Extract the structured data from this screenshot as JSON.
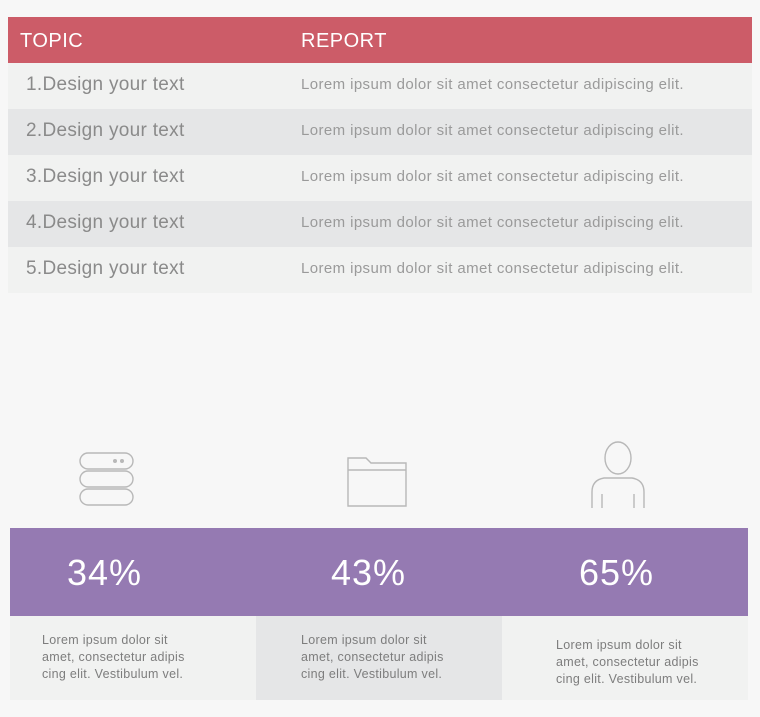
{
  "table": {
    "header": {
      "topic": "TOPIC",
      "report": "REPORT"
    },
    "rows": [
      {
        "topic": "1.Design your text",
        "report": "Lorem ipsum dolor sit amet consectetur adipiscing elit."
      },
      {
        "topic": "2.Design your text",
        "report": "Lorem ipsum dolor sit amet consectetur adipiscing elit."
      },
      {
        "topic": "3.Design your text",
        "report": "Lorem ipsum dolor sit amet consectetur adipiscing elit."
      },
      {
        "topic": "4.Design your text",
        "report": "Lorem ipsum dolor sit amet consectetur adipiscing elit."
      },
      {
        "topic": "5.Design your text",
        "report": "Lorem ipsum dolor sit amet consectetur adipiscing elit."
      }
    ]
  },
  "stats": [
    {
      "icon": "server-icon",
      "value": "34%",
      "desc": [
        "Lorem ipsum dolor sit",
        "amet, consectetur adipis",
        "cing elit. Vestibulum vel."
      ]
    },
    {
      "icon": "folder-icon",
      "value": "43%",
      "desc": [
        "Lorem ipsum dolor sit",
        "amet, consectetur adipis",
        "cing elit. Vestibulum vel."
      ]
    },
    {
      "icon": "user-icon",
      "value": "65%",
      "desc": [
        "Lorem ipsum dolor sit",
        "amet, consectetur adipis",
        "cing elit. Vestibulum vel."
      ]
    }
  ],
  "colors": {
    "header": "#cc5c68",
    "stats_band": "#957ab2",
    "row_light": "#f1f2f1",
    "row_dark": "#e5e6e7",
    "muted_text": "#8a8a8a"
  }
}
